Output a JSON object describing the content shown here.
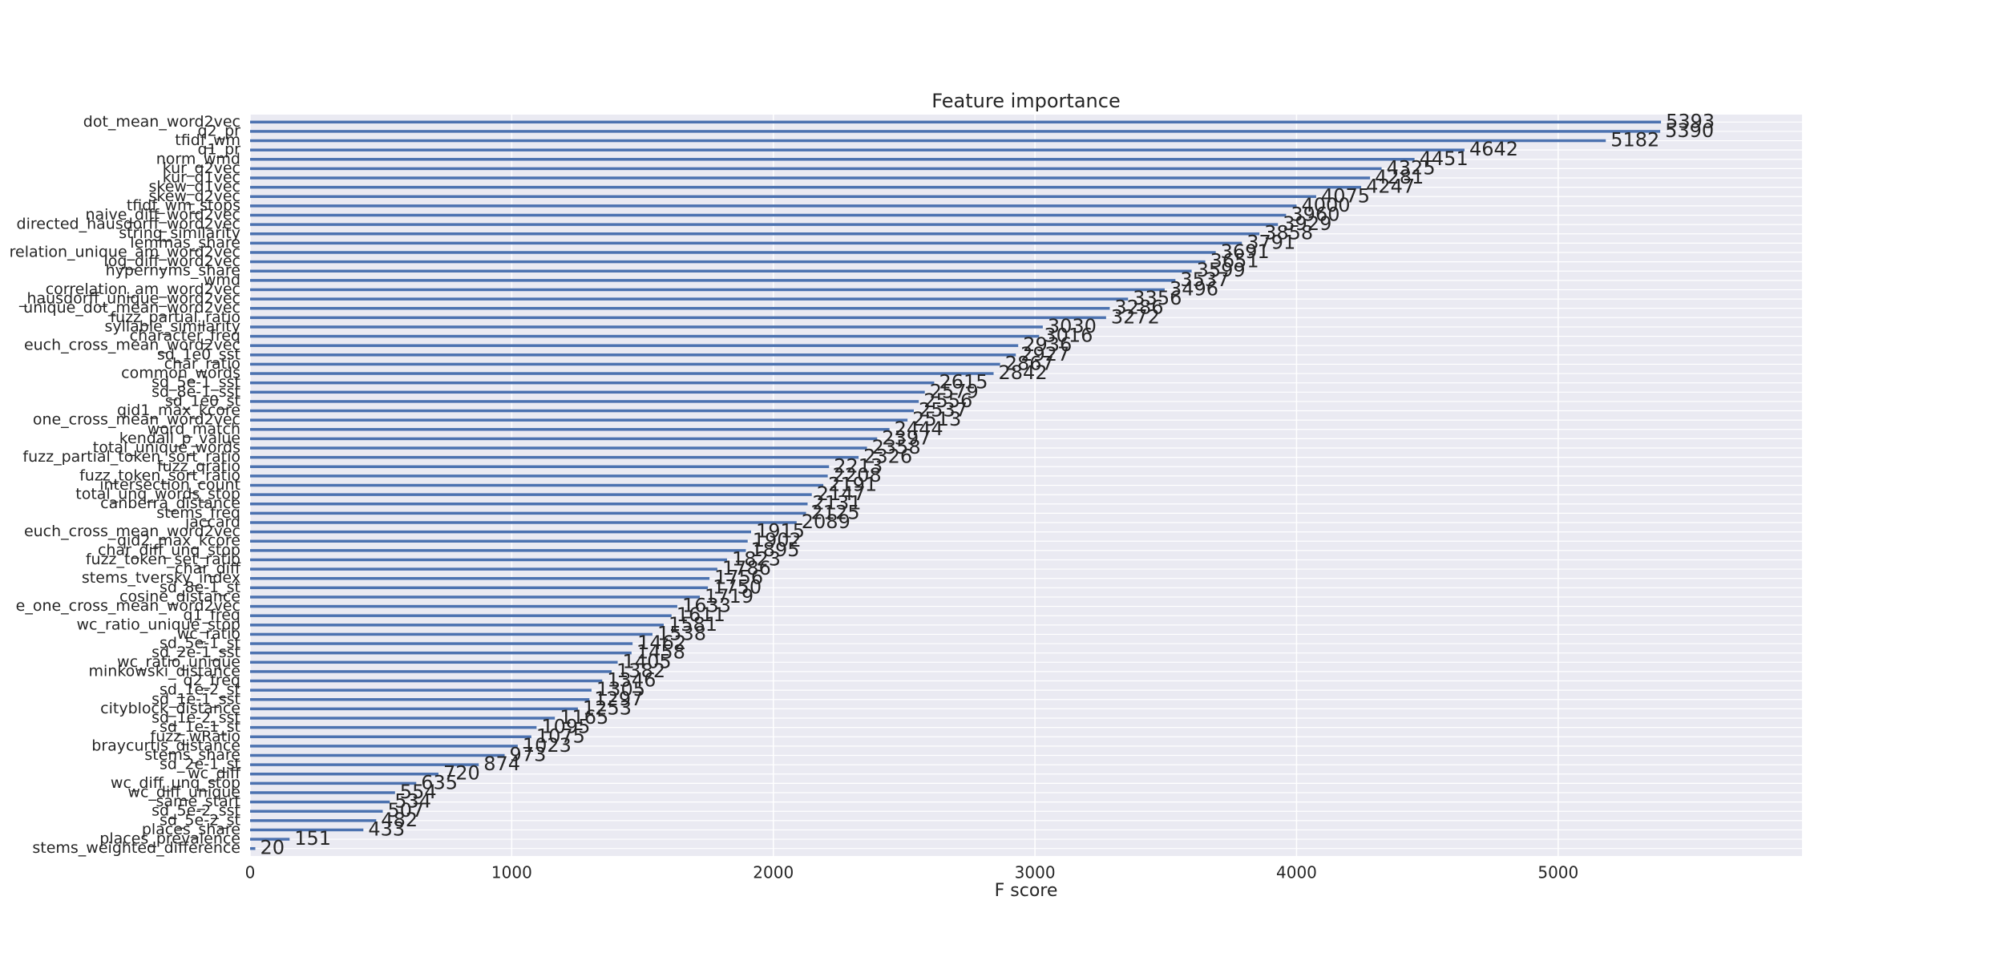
{
  "chart_data": {
    "type": "barh",
    "title": "Feature importance",
    "xlabel": "F score",
    "categories": [
      "dot_mean_word2vec",
      "q2_pr",
      "tfidf_wm",
      "q1_pr",
      "norm_wmd",
      "kur_q2vec",
      "kur_q1vec",
      "skew_q1vec",
      "skew_q2vec",
      "tfidf_wm_stops",
      "naive_diff_word2vec",
      "directed_hausdorff_word2vec",
      "string_similarity",
      "lemmas_share",
      "relation_unique_am_word2vec",
      "log_diff_word2vec",
      "hypernyms_share",
      "wmd",
      "correlation_am_word2vec",
      "_hausdorff_unique_word2vec",
      "unique_dot_mean_word2vec",
      "fuzz_partial_ratio",
      "syllable_similarity",
      "character_freq",
      "euch_cross_mean_word2vec",
      "sd_1e0_sst",
      "char_ratio",
      "common_words",
      "sd_5e-1_sst",
      "sd_8e-1_sst",
      "sd_1e0_st",
      "qid1_max_kcore",
      "one_cross_mean_word2vec",
      "word_match",
      "kendall_p_value",
      "total_unique_words",
      "fuzz_partial_token_sort_ratio",
      "fuzz_qratio",
      "fuzz_token_sort_ratio",
      "intersection_count",
      "total_unq_words_stop",
      "canberra_distance",
      "stems_freq",
      "jaccard",
      "euch_cross_mean_word2vec",
      "qid2_max_kcore",
      "char_diff_unq_stop",
      "fuzz_token_set_ratio",
      "char_diff",
      "stems_tversky_index",
      "sd_8e-1_st",
      "cosine_distance",
      "e_one_cross_mean_word2vec",
      "q1_freq",
      "wc_ratio_unique_stop",
      "wc_ratio",
      "sd_5e-1_st",
      "sd_2e-1_sst",
      "wc_ratio_unique",
      "minkowski_distance",
      "q2_freq",
      "sd_1e-2_st",
      "sd_1e-1_sst",
      "cityblock_distance",
      "sd_1e-2_sst",
      "sd_1e-1_st",
      "fuzz_wRatio",
      "braycurtis_distance",
      "stems_share",
      "sd_2e-1_st",
      "wc_diff",
      "wc_diff_unq_stop",
      "wc_diff_unique",
      "same_start",
      "sd_5e-2_sst",
      "sd_5e-2_st",
      "places_share",
      "places_prevalence",
      "stems_weighted_difference"
    ],
    "values": [
      5393,
      5390,
      5182,
      4642,
      4451,
      4325,
      4281,
      4247,
      4075,
      4000,
      3960,
      3929,
      3858,
      3791,
      3691,
      3651,
      3599,
      3537,
      3496,
      3356,
      3286,
      3272,
      3030,
      3016,
      2936,
      2927,
      2867,
      2842,
      2615,
      2579,
      2556,
      2537,
      2513,
      2444,
      2397,
      2358,
      2326,
      2213,
      2208,
      2191,
      2147,
      2131,
      2125,
      2089,
      1915,
      1902,
      1895,
      1823,
      1786,
      1756,
      1750,
      1719,
      1633,
      1611,
      1581,
      1538,
      1462,
      1458,
      1405,
      1382,
      1346,
      1305,
      1297,
      1253,
      1165,
      1095,
      1075,
      1023,
      973,
      874,
      720,
      635,
      554,
      534,
      507,
      482,
      433,
      151,
      20
    ],
    "color": "#4c72b0",
    "xlim": [
      0,
      5932
    ],
    "xticks": [
      0,
      1000,
      2000,
      3000,
      4000,
      5000
    ],
    "grid": true
  }
}
